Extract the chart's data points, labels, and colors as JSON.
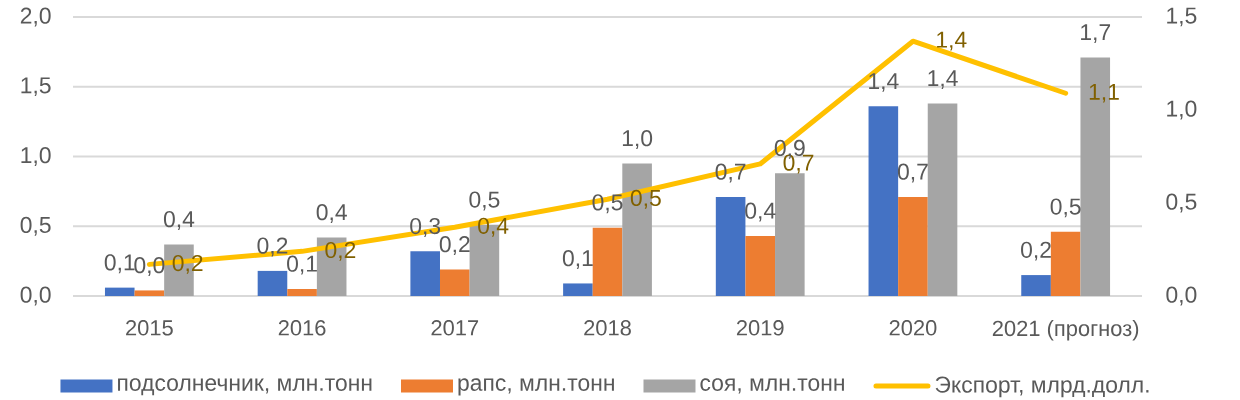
{
  "chart_data": {
    "type": "bar",
    "categories": [
      "2015",
      "2016",
      "2017",
      "2018",
      "2019",
      "2020",
      "2021 (прогноз)"
    ],
    "series": [
      {
        "name": "подсолнечник, млн.тонн",
        "color": "#4472c4",
        "values": [
          0.06,
          0.18,
          0.32,
          0.09,
          0.71,
          1.36,
          0.15
        ],
        "value_labels": [
          "0,1",
          "0,2",
          "0,3",
          "0,1",
          "0,7",
          "1,4",
          "0,2"
        ]
      },
      {
        "name": "рапс, млн.тонн",
        "color": "#ed7d31",
        "values": [
          0.04,
          0.05,
          0.19,
          0.49,
          0.43,
          0.71,
          0.46
        ],
        "value_labels": [
          "0,0",
          "0,1",
          "0,2",
          "0,5",
          "0,4",
          "0,7",
          "0,5"
        ]
      },
      {
        "name": "соя, млн.тонн",
        "color": "#a5a5a5",
        "values": [
          0.37,
          0.42,
          0.51,
          0.95,
          0.88,
          1.38,
          1.71
        ],
        "value_labels": [
          "0,4",
          "0,4",
          "0,5",
          "1,0",
          "0,9",
          "1,4",
          "1,7"
        ]
      },
      {
        "name": "Экспорт, млрд.долл.",
        "type": "line",
        "axis": "y2",
        "color": "#ffc000",
        "line_style": "solid",
        "values": [
          0.17,
          0.24,
          0.37,
          0.52,
          0.71,
          1.37,
          1.09
        ],
        "value_labels": [
          "0,2",
          "0,2",
          "0,4",
          "0,5",
          "0,7",
          "1,4",
          "1,1"
        ]
      }
    ],
    "ylim": [
      0,
      2
    ],
    "yticks": [
      {
        "value": 0,
        "label": "0,0"
      },
      {
        "value": 0.5,
        "label": "0,5"
      },
      {
        "value": 1,
        "label": "1,0"
      },
      {
        "value": 1.5,
        "label": "1,5"
      },
      {
        "value": 2,
        "label": "2,0"
      }
    ],
    "y2lim": [
      0,
      1.5
    ],
    "y2ticks": [
      {
        "value": 0,
        "label": "0,0"
      },
      {
        "value": 0.5,
        "label": "0,5"
      },
      {
        "value": 1,
        "label": "1,0"
      },
      {
        "value": 1.5,
        "label": "1,5"
      }
    ],
    "grid": "y",
    "legend": "bottom"
  }
}
